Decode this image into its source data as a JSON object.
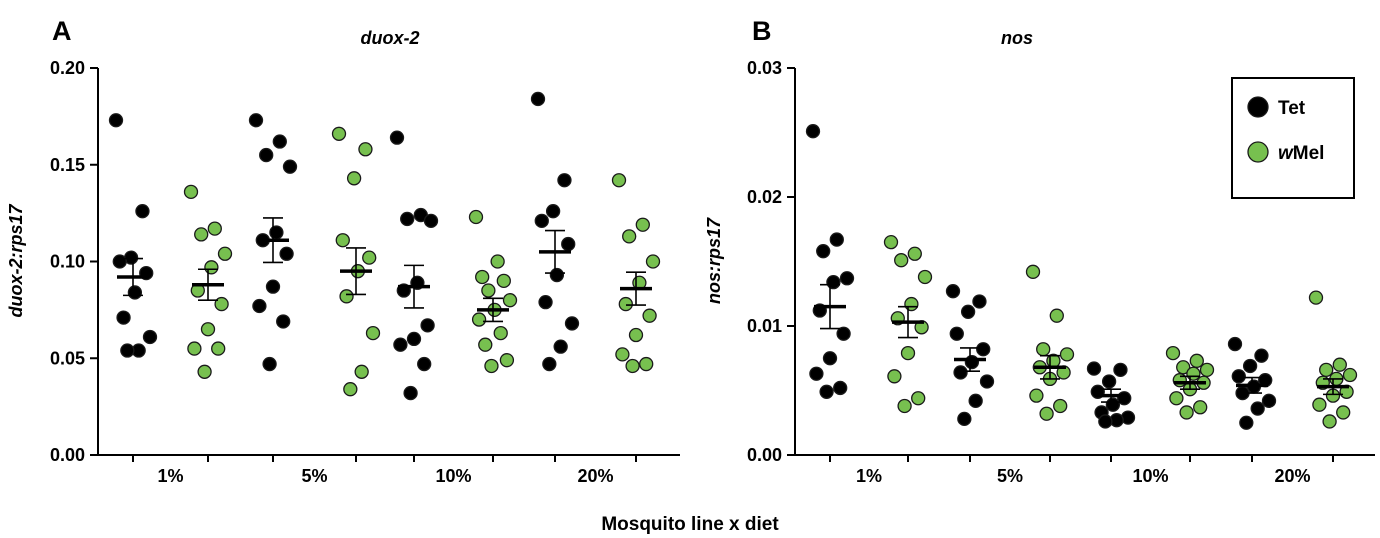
{
  "figure": {
    "xlabel": "Mosquito line x diet"
  },
  "legend": {
    "items": [
      {
        "label_prefix": "",
        "label_italic": "",
        "label_rest": "Tet",
        "color": "#000000"
      },
      {
        "label_prefix": "",
        "label_italic": "w",
        "label_rest": "Mel",
        "color": "#77c04f"
      }
    ]
  },
  "colors": {
    "Tet": "#000000",
    "wMel": "#77c04f",
    "outline": "#1a1a1a"
  },
  "chart_data": [
    {
      "type": "scatter",
      "panel": "A",
      "title": "duox-2",
      "ylabel": "duox-2:rps17",
      "ylim": [
        0,
        0.2
      ],
      "yticks": [
        "0.00",
        "0.05",
        "0.10",
        "0.15",
        "0.20"
      ],
      "categories": [
        "1%",
        "5%",
        "10%",
        "20%"
      ],
      "series": [
        {
          "name": "Tet",
          "color": "#000000",
          "points": [
            [
              0.173,
              0.126,
              0.102,
              0.1,
              0.094,
              0.084,
              0.071,
              0.061,
              0.054,
              0.054
            ],
            [
              0.173,
              0.162,
              0.155,
              0.149,
              0.115,
              0.111,
              0.104,
              0.087,
              0.077,
              0.069,
              0.047
            ],
            [
              0.164,
              0.124,
              0.122,
              0.121,
              0.089,
              0.085,
              0.067,
              0.06,
              0.057,
              0.047,
              0.032
            ],
            [
              0.184,
              0.142,
              0.126,
              0.121,
              0.109,
              0.093,
              0.079,
              0.068,
              0.056,
              0.047
            ]
          ],
          "mean": [
            0.092,
            0.111,
            0.087,
            0.105
          ],
          "sem": [
            0.0095,
            0.0115,
            0.011,
            0.011
          ]
        },
        {
          "name": "wMel",
          "color": "#77c04f",
          "points": [
            [
              0.136,
              0.117,
              0.114,
              0.104,
              0.097,
              0.085,
              0.078,
              0.065,
              0.055,
              0.055,
              0.043
            ],
            [
              0.166,
              0.158,
              0.143,
              0.111,
              0.102,
              0.095,
              0.082,
              0.063,
              0.043,
              0.034
            ],
            [
              0.123,
              0.1,
              0.092,
              0.09,
              0.085,
              0.08,
              0.075,
              0.07,
              0.063,
              0.057,
              0.049,
              0.046
            ],
            [
              0.142,
              0.119,
              0.113,
              0.1,
              0.089,
              0.078,
              0.072,
              0.062,
              0.052,
              0.047,
              0.046
            ]
          ],
          "mean": [
            0.088,
            0.095,
            0.075,
            0.086
          ],
          "sem": [
            0.008,
            0.012,
            0.006,
            0.0085
          ]
        }
      ]
    },
    {
      "type": "scatter",
      "panel": "B",
      "title": "nos",
      "ylabel": "nos:rps17",
      "ylim": [
        0,
        0.03
      ],
      "yticks": [
        "0.00",
        "0.01",
        "0.02",
        "0.03"
      ],
      "categories": [
        "1%",
        "5%",
        "10%",
        "20%"
      ],
      "legend_position": "top-right",
      "series": [
        {
          "name": "Tet",
          "color": "#000000",
          "points": [
            [
              0.0251,
              0.0167,
              0.0158,
              0.0137,
              0.0134,
              0.0112,
              0.0094,
              0.0075,
              0.0063,
              0.0052,
              0.0049
            ],
            [
              0.0127,
              0.0119,
              0.0111,
              0.0094,
              0.0082,
              0.0072,
              0.0064,
              0.0057,
              0.0042,
              0.0028
            ],
            [
              0.0067,
              0.0066,
              0.0057,
              0.0049,
              0.0044,
              0.0039,
              0.0033,
              0.0029,
              0.0027,
              0.0026
            ],
            [
              0.0086,
              0.0077,
              0.0069,
              0.0061,
              0.0058,
              0.0053,
              0.0048,
              0.0042,
              0.0036,
              0.0025
            ]
          ],
          "mean": [
            0.0115,
            0.0074,
            0.0046,
            0.0054
          ],
          "sem": [
            0.0017,
            0.0009,
            0.0005,
            0.0006
          ]
        },
        {
          "name": "wMel",
          "color": "#77c04f",
          "points": [
            [
              0.0165,
              0.0156,
              0.0151,
              0.0138,
              0.0117,
              0.0106,
              0.0099,
              0.0079,
              0.0061,
              0.0044,
              0.0038
            ],
            [
              0.0142,
              0.0108,
              0.0082,
              0.0078,
              0.0073,
              0.0068,
              0.0064,
              0.0059,
              0.0046,
              0.0038,
              0.0032
            ],
            [
              0.0079,
              0.0073,
              0.0068,
              0.0066,
              0.0063,
              0.0058,
              0.0056,
              0.0051,
              0.0044,
              0.0037,
              0.0033
            ],
            [
              0.0122,
              0.007,
              0.0066,
              0.0062,
              0.0059,
              0.0056,
              0.0049,
              0.0046,
              0.0039,
              0.0033,
              0.0026
            ]
          ],
          "mean": [
            0.0103,
            0.0068,
            0.0056,
            0.0053
          ],
          "sem": [
            0.0012,
            0.0009,
            0.0005,
            0.0006
          ]
        }
      ]
    }
  ]
}
